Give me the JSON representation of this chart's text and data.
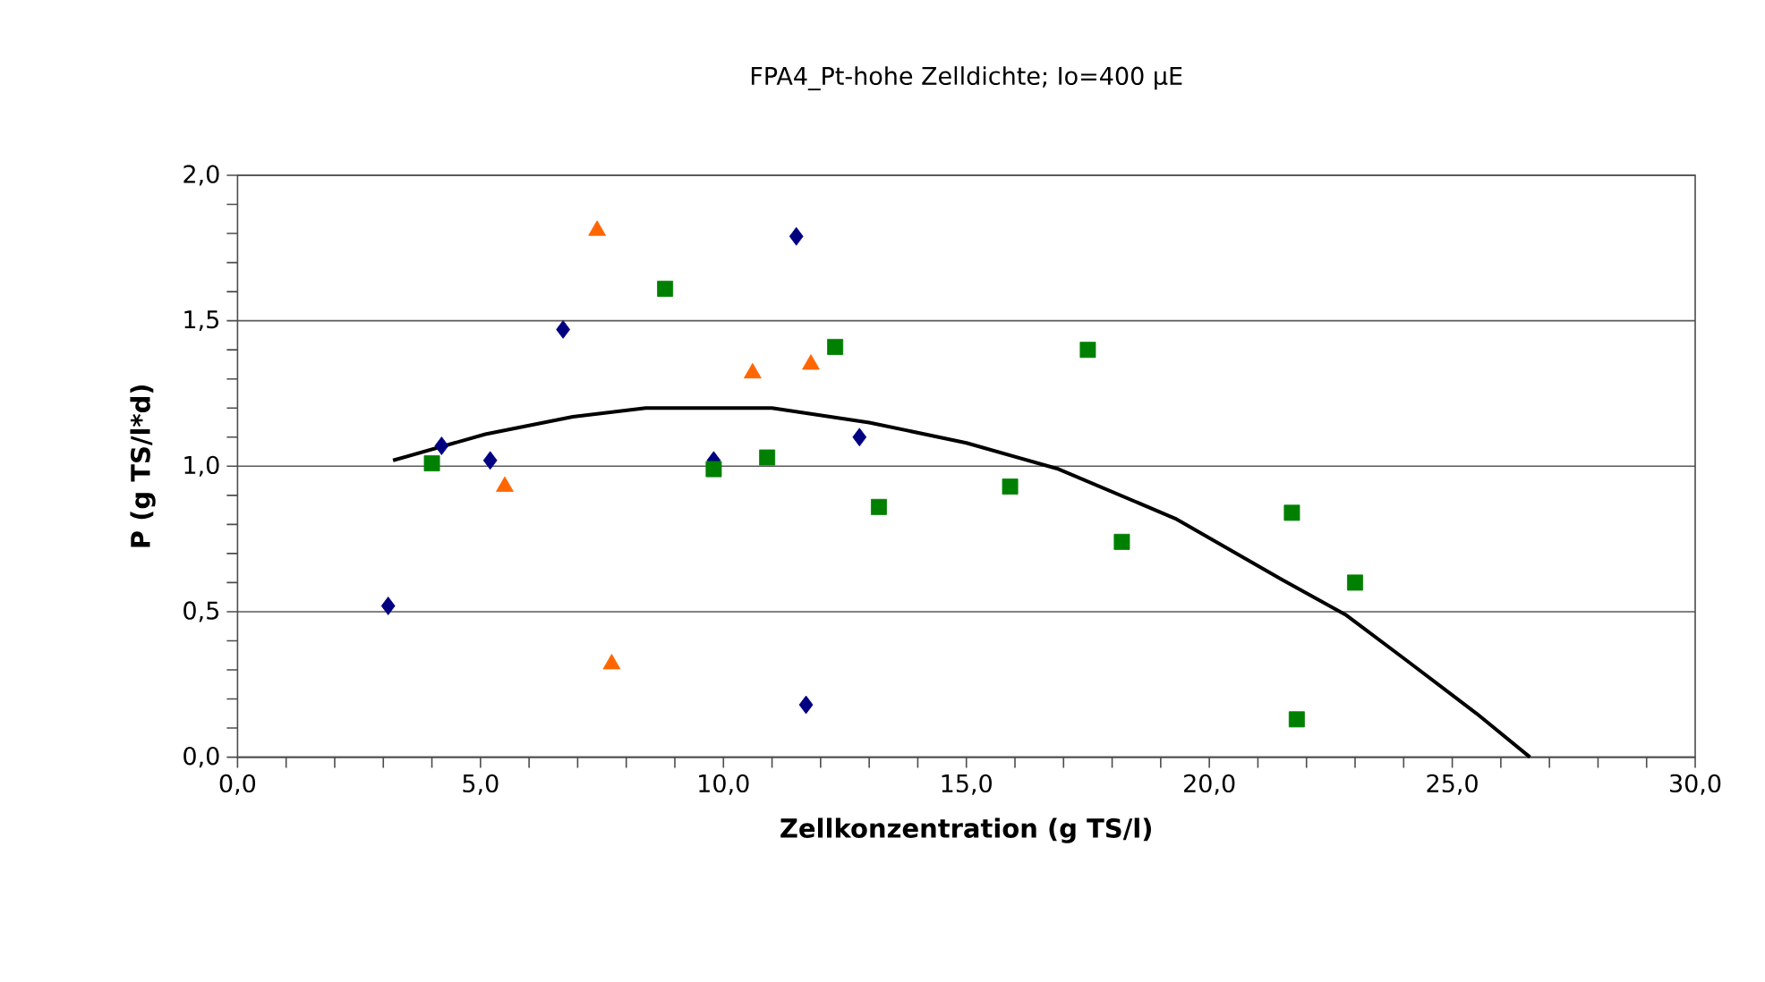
{
  "chart_data": {
    "type": "scatter",
    "title": "FPA4_Pt-hohe Zelldichte; Io=400 µE",
    "xlabel": "Zellkonzentration (g TS/l)",
    "ylabel": "P (g TS/l*d)",
    "xlim": [
      0,
      30
    ],
    "ylim": [
      0,
      2
    ],
    "xticks": [
      {
        "value": 0,
        "label": "0,0"
      },
      {
        "value": 5,
        "label": "5,0"
      },
      {
        "value": 10,
        "label": "10,0"
      },
      {
        "value": 15,
        "label": "15,0"
      },
      {
        "value": 20,
        "label": "20,0"
      },
      {
        "value": 25,
        "label": "25,0"
      },
      {
        "value": 30,
        "label": "30,0"
      }
    ],
    "yticks": [
      {
        "value": 0,
        "label": "0,0"
      },
      {
        "value": 0.5,
        "label": "0,5"
      },
      {
        "value": 1,
        "label": "1,0"
      },
      {
        "value": 1.5,
        "label": "1,5"
      },
      {
        "value": 2,
        "label": "2,0"
      }
    ],
    "grid": "y",
    "series": [
      {
        "color": "#000080",
        "marker": "diamond",
        "x": [
          3.1,
          4.2,
          5.2,
          6.7,
          9.8,
          11.5,
          11.7,
          12.8
        ],
        "values": [
          0.52,
          1.07,
          1.02,
          1.47,
          1.02,
          1.79,
          0.18,
          1.1
        ]
      },
      {
        "color": "#ff6600",
        "marker": "triangle",
        "x": [
          5.5,
          7.4,
          7.7,
          10.6,
          11.8
        ],
        "values": [
          0.93,
          1.81,
          0.32,
          1.32,
          1.35
        ]
      },
      {
        "color": "#008000",
        "marker": "square",
        "x": [
          4.0,
          8.8,
          9.8,
          10.9,
          12.3,
          13.2,
          15.9,
          17.5,
          18.2,
          21.7,
          21.8,
          23.0
        ],
        "values": [
          1.01,
          1.61,
          0.99,
          1.03,
          1.41,
          0.86,
          0.93,
          1.4,
          0.74,
          0.84,
          0.13,
          0.6
        ]
      },
      {
        "type": "line",
        "color": "#000000",
        "marker": "none",
        "x": [
          3.2,
          5.1,
          6.9,
          8.4,
          11.0,
          13.0,
          15.0,
          16.9,
          19.3,
          21.5,
          22.8,
          24.0,
          25.5,
          26.6
        ],
        "values": [
          1.02,
          1.11,
          1.17,
          1.2,
          1.2,
          1.15,
          1.08,
          0.99,
          0.82,
          0.61,
          0.49,
          0.34,
          0.15,
          0.0
        ]
      }
    ]
  }
}
